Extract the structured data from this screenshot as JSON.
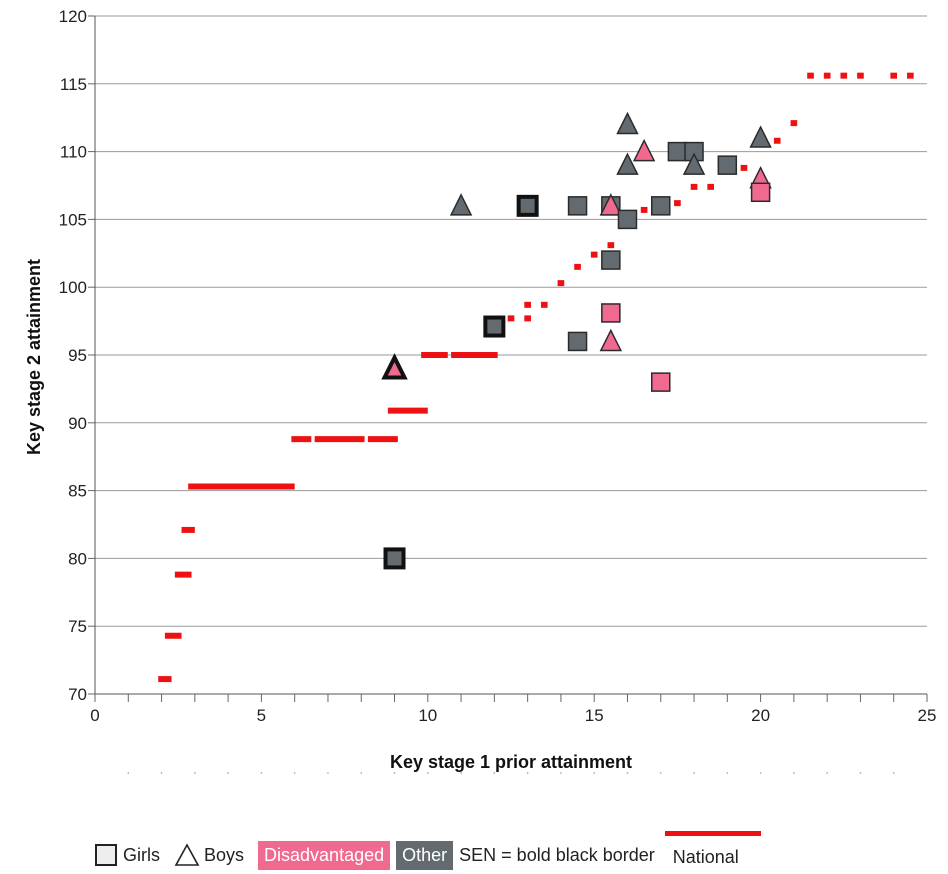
{
  "chart_data": {
    "type": "scatter",
    "xlabel": "Key stage 1 prior attainment",
    "ylabel": "Key stage 2 attainment",
    "xlim": [
      0,
      25
    ],
    "ylim": [
      70,
      120
    ],
    "xticks": [
      "0",
      "5",
      "10",
      "15",
      "20",
      "25"
    ],
    "yticks": [
      "70",
      "75",
      "80",
      "85",
      "90",
      "95",
      "100",
      "105",
      "110",
      "115",
      "120"
    ],
    "grid": "horizontal",
    "colors": {
      "disadvantaged": "#f06a8f",
      "other": "#636b70",
      "national": "#ee1111"
    },
    "national": [
      {
        "x1": 1.9,
        "x2": 2.3,
        "y": 71.1
      },
      {
        "x1": 2.1,
        "x2": 2.6,
        "y": 74.3
      },
      {
        "x1": 2.4,
        "x2": 2.9,
        "y": 78.8
      },
      {
        "x1": 2.6,
        "x2": 3.0,
        "y": 82.1
      },
      {
        "x1": 2.8,
        "x2": 6.0,
        "y": 85.3
      },
      {
        "x1": 5.9,
        "x2": 6.5,
        "y": 88.8
      },
      {
        "x1": 6.6,
        "x2": 8.1,
        "y": 88.8
      },
      {
        "x1": 8.2,
        "x2": 9.1,
        "y": 88.8
      },
      {
        "x1": 8.8,
        "x2": 10.0,
        "y": 90.9
      },
      {
        "x1": 9.8,
        "x2": 10.6,
        "y": 95.0
      },
      {
        "x1": 10.7,
        "x2": 12.1,
        "y": 95.0
      },
      {
        "x1": 12.4,
        "x2": 12.6,
        "y": 97.7
      },
      {
        "x1": 12.9,
        "x2": 13.1,
        "y": 97.7
      },
      {
        "x1": 12.9,
        "x2": 13.1,
        "y": 98.7
      },
      {
        "x1": 13.4,
        "x2": 13.6,
        "y": 98.7
      },
      {
        "x1": 13.9,
        "x2": 14.1,
        "y": 100.3
      },
      {
        "x1": 14.4,
        "x2": 14.6,
        "y": 101.5
      },
      {
        "x1": 14.9,
        "x2": 15.1,
        "y": 102.4
      },
      {
        "x1": 15.4,
        "x2": 15.6,
        "y": 103.1
      },
      {
        "x1": 15.9,
        "x2": 16.1,
        "y": 105.3
      },
      {
        "x1": 16.4,
        "x2": 16.6,
        "y": 105.7
      },
      {
        "x1": 17.4,
        "x2": 17.6,
        "y": 106.2
      },
      {
        "x1": 17.9,
        "x2": 18.1,
        "y": 107.4
      },
      {
        "x1": 18.4,
        "x2": 18.6,
        "y": 107.4
      },
      {
        "x1": 19.4,
        "x2": 19.6,
        "y": 108.8
      },
      {
        "x1": 19.9,
        "x2": 20.1,
        "y": 107.4
      },
      {
        "x1": 20.4,
        "x2": 20.6,
        "y": 110.8
      },
      {
        "x1": 20.9,
        "x2": 21.1,
        "y": 112.1
      },
      {
        "x1": 21.4,
        "x2": 21.6,
        "y": 115.6
      },
      {
        "x1": 21.9,
        "x2": 22.1,
        "y": 115.6
      },
      {
        "x1": 22.4,
        "x2": 22.6,
        "y": 115.6
      },
      {
        "x1": 22.9,
        "x2": 23.1,
        "y": 115.6
      },
      {
        "x1": 23.9,
        "x2": 24.1,
        "y": 115.6
      },
      {
        "x1": 24.4,
        "x2": 24.6,
        "y": 115.6
      }
    ],
    "points": [
      {
        "x": 9,
        "y": 80,
        "shape": "square",
        "group": "other",
        "sen": true
      },
      {
        "x": 9,
        "y": 94,
        "shape": "triangle",
        "group": "disadvantaged",
        "sen": true
      },
      {
        "x": 11,
        "y": 106,
        "shape": "triangle",
        "group": "other",
        "sen": false
      },
      {
        "x": 12,
        "y": 97.1,
        "shape": "square",
        "group": "other",
        "sen": true
      },
      {
        "x": 13,
        "y": 106,
        "shape": "square",
        "group": "other",
        "sen": true
      },
      {
        "x": 14.5,
        "y": 106,
        "shape": "square",
        "group": "other",
        "sen": false
      },
      {
        "x": 14.5,
        "y": 96,
        "shape": "square",
        "group": "other",
        "sen": false
      },
      {
        "x": 15.5,
        "y": 106,
        "shape": "square",
        "group": "other",
        "sen": false
      },
      {
        "x": 15.5,
        "y": 106,
        "shape": "triangle",
        "group": "disadvantaged",
        "sen": false
      },
      {
        "x": 15.5,
        "y": 102,
        "shape": "square",
        "group": "other",
        "sen": false
      },
      {
        "x": 15.5,
        "y": 98.1,
        "shape": "square",
        "group": "disadvantaged",
        "sen": false
      },
      {
        "x": 15.5,
        "y": 96,
        "shape": "triangle",
        "group": "disadvantaged",
        "sen": false
      },
      {
        "x": 16,
        "y": 112,
        "shape": "triangle",
        "group": "other",
        "sen": false
      },
      {
        "x": 16,
        "y": 109,
        "shape": "triangle",
        "group": "other",
        "sen": false
      },
      {
        "x": 16,
        "y": 105,
        "shape": "square",
        "group": "other",
        "sen": false
      },
      {
        "x": 16.5,
        "y": 110,
        "shape": "triangle",
        "group": "disadvantaged",
        "sen": false
      },
      {
        "x": 17,
        "y": 106,
        "shape": "square",
        "group": "other",
        "sen": false
      },
      {
        "x": 17,
        "y": 93,
        "shape": "square",
        "group": "disadvantaged",
        "sen": false
      },
      {
        "x": 17.5,
        "y": 110,
        "shape": "square",
        "group": "other",
        "sen": false
      },
      {
        "x": 18,
        "y": 110,
        "shape": "square",
        "group": "other",
        "sen": false
      },
      {
        "x": 18,
        "y": 109,
        "shape": "triangle",
        "group": "other",
        "sen": false
      },
      {
        "x": 19,
        "y": 109,
        "shape": "square",
        "group": "other",
        "sen": false
      },
      {
        "x": 20,
        "y": 111,
        "shape": "triangle",
        "group": "other",
        "sen": false
      },
      {
        "x": 20,
        "y": 108,
        "shape": "triangle",
        "group": "disadvantaged",
        "sen": false
      },
      {
        "x": 20,
        "y": 107,
        "shape": "square",
        "group": "disadvantaged",
        "sen": false
      }
    ]
  },
  "legend": {
    "girls": "Girls",
    "boys": "Boys",
    "disadvantaged": "Disadvantaged",
    "other": "Other",
    "sen": "SEN = bold black border",
    "national": "National"
  }
}
